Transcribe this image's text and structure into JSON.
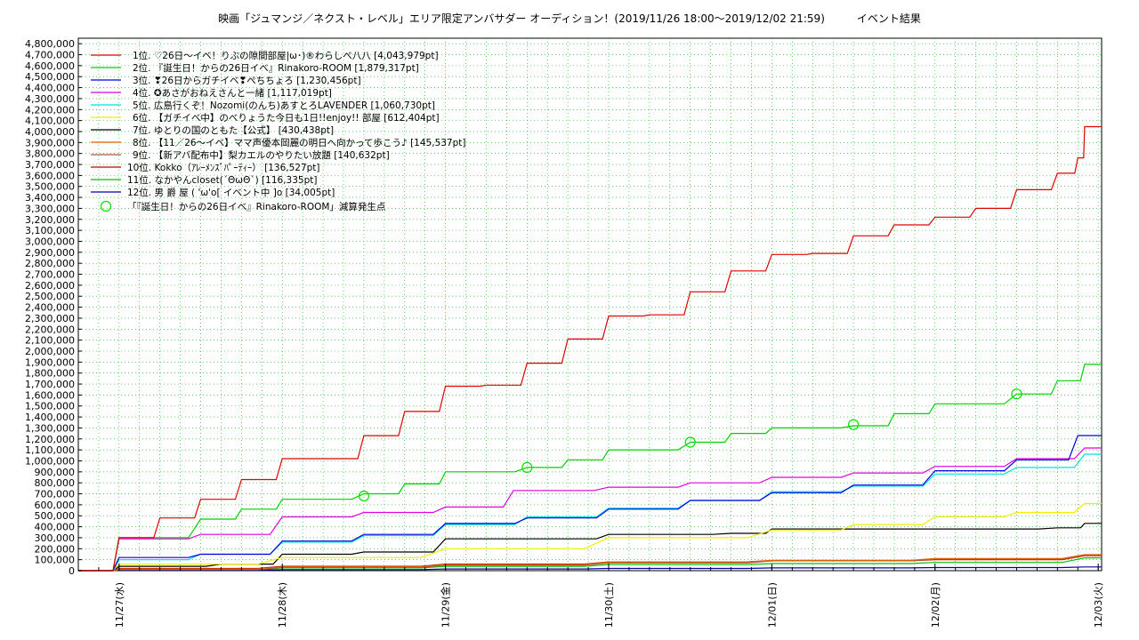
{
  "chart_data": {
    "type": "line",
    "title": "映画「ジュマンジ／ネクスト・レベル」エリア限定アンバサダー オーディション！(2019/11/26 18:00～2019/12/02 21:59)　　　イベント結果",
    "xlabel": "",
    "ylabel": "",
    "ylim": [
      0,
      4850000
    ],
    "ytick_step": 100000,
    "x_ticks": [
      "11/27(水)",
      "11/28(木)",
      "11/29(金)",
      "11/30(土)",
      "12/01(日)",
      "12/02(月)",
      "12/03(火)"
    ],
    "x_range": [
      "2019-11-26 18:00",
      "2019-12-03 00:30"
    ],
    "grid": true,
    "legend_position": "top-left",
    "series": [
      {
        "name": "1位. ♡26日～イベ！りぶの隙間部屋|ω･)®わらしべ八八 [4,043,979pt]",
        "color": "#e00000",
        "points": [
          [
            "2019-11-26 18:00",
            0
          ],
          [
            "2019-11-27 00:00",
            300000
          ],
          [
            "2019-11-27 06:00",
            480000
          ],
          [
            "2019-11-27 12:00",
            650000
          ],
          [
            "2019-11-27 18:00",
            830000
          ],
          [
            "2019-11-28 00:00",
            1020000
          ],
          [
            "2019-11-28 06:00",
            1020000
          ],
          [
            "2019-11-28 12:00",
            1230000
          ],
          [
            "2019-11-28 18:00",
            1450000
          ],
          [
            "2019-11-29 00:00",
            1680000
          ],
          [
            "2019-11-29 06:00",
            1690000
          ],
          [
            "2019-11-29 12:00",
            1890000
          ],
          [
            "2019-11-29 18:00",
            2110000
          ],
          [
            "2019-11-30 00:00",
            2320000
          ],
          [
            "2019-11-30 06:00",
            2330000
          ],
          [
            "2019-11-30 12:00",
            2540000
          ],
          [
            "2019-11-30 18:00",
            2730000
          ],
          [
            "2019-12-01 00:00",
            2880000
          ],
          [
            "2019-12-01 06:00",
            2890000
          ],
          [
            "2019-12-01 12:00",
            3050000
          ],
          [
            "2019-12-01 18:00",
            3150000
          ],
          [
            "2019-12-02 00:00",
            3220000
          ],
          [
            "2019-12-02 06:00",
            3300000
          ],
          [
            "2019-12-02 12:00",
            3470000
          ],
          [
            "2019-12-02 18:00",
            3620000
          ],
          [
            "2019-12-02 21:00",
            3760000
          ],
          [
            "2019-12-02 22:00",
            4043979
          ],
          [
            "2019-12-03 00:30",
            4043979
          ]
        ]
      },
      {
        "name": "2位. 『誕生日！からの26日イベ』Rinakoro-ROOM [1,879,317pt]",
        "color": "#00d000",
        "points": [
          [
            "2019-11-26 18:00",
            0
          ],
          [
            "2019-11-27 00:00",
            300000
          ],
          [
            "2019-11-27 12:00",
            470000
          ],
          [
            "2019-11-27 18:00",
            560000
          ],
          [
            "2019-11-28 00:00",
            650000
          ],
          [
            "2019-11-28 12:00",
            700000
          ],
          [
            "2019-11-28 18:00",
            790000
          ],
          [
            "2019-11-29 00:00",
            900000
          ],
          [
            "2019-11-29 12:00",
            940000
          ],
          [
            "2019-11-29 18:00",
            1010000
          ],
          [
            "2019-11-30 00:00",
            1100000
          ],
          [
            "2019-11-30 12:00",
            1170000
          ],
          [
            "2019-11-30 18:00",
            1250000
          ],
          [
            "2019-12-01 00:00",
            1300000
          ],
          [
            "2019-12-01 12:00",
            1320000
          ],
          [
            "2019-12-01 18:00",
            1430000
          ],
          [
            "2019-12-02 00:00",
            1520000
          ],
          [
            "2019-12-02 12:00",
            1610000
          ],
          [
            "2019-12-02 18:00",
            1730000
          ],
          [
            "2019-12-02 22:00",
            1879317
          ],
          [
            "2019-12-03 00:30",
            1879317
          ]
        ]
      },
      {
        "name": "3位. ❣26日からガチイベ❣ぺちちょろ [1,230,456pt]",
        "color": "#0000e0",
        "points": [
          [
            "2019-11-26 18:00",
            0
          ],
          [
            "2019-11-27 00:00",
            120000
          ],
          [
            "2019-11-27 12:00",
            150000
          ],
          [
            "2019-11-28 00:00",
            270000
          ],
          [
            "2019-11-28 12:00",
            330000
          ],
          [
            "2019-11-29 00:00",
            430000
          ],
          [
            "2019-11-29 12:00",
            480000
          ],
          [
            "2019-11-30 00:00",
            560000
          ],
          [
            "2019-11-30 12:00",
            640000
          ],
          [
            "2019-12-01 00:00",
            710000
          ],
          [
            "2019-12-01 12:00",
            780000
          ],
          [
            "2019-12-02 00:00",
            910000
          ],
          [
            "2019-12-02 12:00",
            1010000
          ],
          [
            "2019-12-02 21:00",
            1230456
          ],
          [
            "2019-12-03 00:30",
            1230456
          ]
        ]
      },
      {
        "name": "4位. ✪あさがおねえさんと一緒 [1,117,019pt]",
        "color": "#e000e0",
        "points": [
          [
            "2019-11-26 18:00",
            0
          ],
          [
            "2019-11-27 00:00",
            290000
          ],
          [
            "2019-11-27 12:00",
            330000
          ],
          [
            "2019-11-28 00:00",
            490000
          ],
          [
            "2019-11-28 12:00",
            530000
          ],
          [
            "2019-11-29 00:00",
            580000
          ],
          [
            "2019-11-29 10:00",
            730000
          ],
          [
            "2019-11-30 00:00",
            760000
          ],
          [
            "2019-11-30 12:00",
            800000
          ],
          [
            "2019-12-01 00:00",
            850000
          ],
          [
            "2019-12-01 12:00",
            890000
          ],
          [
            "2019-12-02 00:00",
            950000
          ],
          [
            "2019-12-02 12:00",
            1020000
          ],
          [
            "2019-12-02 22:00",
            1117019
          ],
          [
            "2019-12-03 00:30",
            1117019
          ]
        ]
      },
      {
        "name": "5位. 広島行くぞ！Nozomi(のんち)あすとろLAVENDER [1,060,730pt]",
        "color": "#00e0e0",
        "points": [
          [
            "2019-11-26 18:00",
            0
          ],
          [
            "2019-11-27 00:00",
            100000
          ],
          [
            "2019-11-27 12:00",
            150000
          ],
          [
            "2019-11-28 00:00",
            260000
          ],
          [
            "2019-11-28 12:00",
            320000
          ],
          [
            "2019-11-29 00:00",
            420000
          ],
          [
            "2019-11-29 12:00",
            490000
          ],
          [
            "2019-11-30 00:00",
            570000
          ],
          [
            "2019-11-30 12:00",
            640000
          ],
          [
            "2019-12-01 00:00",
            720000
          ],
          [
            "2019-12-01 12:00",
            770000
          ],
          [
            "2019-12-02 00:00",
            880000
          ],
          [
            "2019-12-02 12:00",
            940000
          ],
          [
            "2019-12-02 22:00",
            1060730
          ],
          [
            "2019-12-03 00:30",
            1060730
          ]
        ]
      },
      {
        "name": "6位. 【ガチイベ中】のべりょうた今日も1日!!enjoy!! 部屋 [612,404pt]",
        "color": "#f0f000",
        "points": [
          [
            "2019-11-26 18:00",
            0
          ],
          [
            "2019-11-27 00:00",
            60000
          ],
          [
            "2019-11-28 00:00",
            120000
          ],
          [
            "2019-11-29 00:00",
            200000
          ],
          [
            "2019-11-30 00:00",
            300000
          ],
          [
            "2019-12-01 00:00",
            370000
          ],
          [
            "2019-12-01 12:00",
            420000
          ],
          [
            "2019-12-02 00:00",
            490000
          ],
          [
            "2019-12-02 12:00",
            530000
          ],
          [
            "2019-12-02 22:00",
            612404
          ],
          [
            "2019-12-03 00:30",
            612404
          ]
        ]
      },
      {
        "name": "7位. ゆとりの国のともた【公式】 [430,438pt]",
        "color": "#000000",
        "points": [
          [
            "2019-11-26 18:00",
            0
          ],
          [
            "2019-11-27 00:00",
            40000
          ],
          [
            "2019-11-27 15:00",
            60000
          ],
          [
            "2019-11-28 00:00",
            150000
          ],
          [
            "2019-11-28 12:00",
            170000
          ],
          [
            "2019-11-29 00:00",
            290000
          ],
          [
            "2019-11-29 12:00",
            290000
          ],
          [
            "2019-11-30 00:00",
            330000
          ],
          [
            "2019-11-30 18:00",
            340000
          ],
          [
            "2019-12-01 00:00",
            380000
          ],
          [
            "2019-12-02 00:00",
            380000
          ],
          [
            "2019-12-02 18:00",
            390000
          ],
          [
            "2019-12-02 22:00",
            430438
          ],
          [
            "2019-12-03 00:30",
            430438
          ]
        ]
      },
      {
        "name": "8位. 【11／26～イベ】ママ声優本岡麗の明日へ向かって歩こう♪ [145,537pt]",
        "color": "#e06000",
        "points": [
          [
            "2019-11-26 18:00",
            0
          ],
          [
            "2019-11-27 00:00",
            15000
          ],
          [
            "2019-11-28 00:00",
            35000
          ],
          [
            "2019-11-29 00:00",
            55000
          ],
          [
            "2019-11-30 00:00",
            80000
          ],
          [
            "2019-12-01 00:00",
            95000
          ],
          [
            "2019-12-02 00:00",
            110000
          ],
          [
            "2019-12-02 22:00",
            145537
          ],
          [
            "2019-12-03 00:30",
            145537
          ]
        ]
      },
      {
        "name": "9位. 【新アバ配布中】梨カエルのやりたい放題 [140,632pt]",
        "color": "#a06040",
        "points": [
          [
            "2019-11-26 18:00",
            0
          ],
          [
            "2019-11-27 00:00",
            10000
          ],
          [
            "2019-11-28 00:00",
            30000
          ],
          [
            "2019-11-29 00:00",
            50000
          ],
          [
            "2019-11-30 00:00",
            70000
          ],
          [
            "2019-12-01 00:00",
            90000
          ],
          [
            "2019-12-02 00:00",
            105000
          ],
          [
            "2019-12-02 22:00",
            140632
          ],
          [
            "2019-12-03 00:30",
            140632
          ]
        ]
      },
      {
        "name": "10位. Kokko（ｱﾚｰﾒﾝｽﾞﾊﾟｰﾃｨｰ） [136,527pt]",
        "color": "#c00000",
        "points": [
          [
            "2019-11-26 18:00",
            0
          ],
          [
            "2019-11-27 00:00",
            20000
          ],
          [
            "2019-11-28 00:00",
            40000
          ],
          [
            "2019-11-29 00:00",
            60000
          ],
          [
            "2019-11-30 00:00",
            80000
          ],
          [
            "2019-12-01 00:00",
            90000
          ],
          [
            "2019-12-02 00:00",
            100000
          ],
          [
            "2019-12-02 22:00",
            136527
          ],
          [
            "2019-12-03 00:30",
            136527
          ]
        ]
      },
      {
        "name": "11位. なかやんcloset(´ΘωΘ`) [116,335pt]",
        "color": "#00c000",
        "points": [
          [
            "2019-11-26 18:00",
            0
          ],
          [
            "2019-11-27 00:00",
            10000
          ],
          [
            "2019-11-28 00:00",
            25000
          ],
          [
            "2019-11-29 00:00",
            40000
          ],
          [
            "2019-11-30 00:00",
            55000
          ],
          [
            "2019-12-01 00:00",
            65000
          ],
          [
            "2019-12-02 00:00",
            75000
          ],
          [
            "2019-12-02 22:00",
            116335
          ],
          [
            "2019-12-03 00:30",
            116335
          ]
        ]
      },
      {
        "name": "12位. 男 爵 屋 ( 'ω'o[ イベント中 ]o [34,005pt]",
        "color": "#0000a0",
        "points": [
          [
            "2019-11-26 18:00",
            0
          ],
          [
            "2019-11-27 00:00",
            5000
          ],
          [
            "2019-11-28 00:00",
            10000
          ],
          [
            "2019-11-29 00:00",
            15000
          ],
          [
            "2019-11-30 00:00",
            20000
          ],
          [
            "2019-12-01 00:00",
            25000
          ],
          [
            "2019-12-02 00:00",
            28000
          ],
          [
            "2019-12-02 22:00",
            34005
          ],
          [
            "2019-12-03 00:30",
            34005
          ]
        ]
      }
    ],
    "markers": {
      "name": "「『誕生日！からの26日イベ』Rinakoro-ROOM」減算発生点",
      "color": "#00e000",
      "points": [
        [
          "2019-11-28 12:00",
          680000
        ],
        [
          "2019-11-29 12:00",
          940000
        ],
        [
          "2019-11-30 12:00",
          1170000
        ],
        [
          "2019-12-01 12:00",
          1330000
        ],
        [
          "2019-12-02 12:00",
          1610000
        ]
      ]
    }
  }
}
